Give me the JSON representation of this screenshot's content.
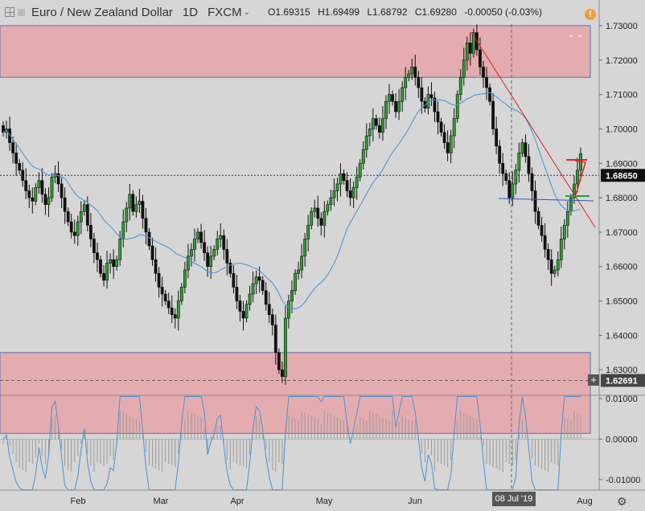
{
  "header": {
    "symbol_title": "Euro / New Zealand Dollar",
    "interval": "1D",
    "exchange": "FXCM",
    "open": "O1.69315",
    "high": "H1.69499",
    "low": "L1.68792",
    "close": "C1.69280",
    "change": "-0.00050 (-0.03%)"
  },
  "icons": {
    "alert": "!",
    "chevrons": "⌄ ⌄",
    "crosshair": "+",
    "settings": "⚙"
  },
  "price_labels": {
    "current": "1.68650",
    "crosshair": "1.62691"
  },
  "time_label": "08 Jul '19",
  "colors": {
    "up": "#2ca02c",
    "down": "#111111",
    "ma": "#4a90d9",
    "zone": "#e8a5a8",
    "trend": "#e02020",
    "panel_bg": "#d6d6d6"
  },
  "chart_data": [
    {
      "type": "candlestick",
      "y_ticks": [
        "1.73000",
        "1.72000",
        "1.71000",
        "1.70000",
        "1.69000",
        "1.68000",
        "1.67000",
        "1.66000",
        "1.65000",
        "1.64000",
        "1.63000"
      ],
      "y_range": [
        1.612,
        1.733
      ],
      "x_ticks": [
        "Feb",
        "Mar",
        "Apr",
        "May",
        "Jun",
        "Jul",
        "Aug"
      ],
      "zones": [
        {
          "from": 1.715,
          "to": 1.73
        },
        {
          "from": 1.6115,
          "to": 1.635
        }
      ],
      "crosshair_price": 1.6269,
      "current_price": 1.6865,
      "closes": [
        1.699,
        1.7,
        1.696,
        1.693,
        1.69,
        1.688,
        1.685,
        1.682,
        1.68,
        1.679,
        1.683,
        1.685,
        1.681,
        1.678,
        1.68,
        1.686,
        1.687,
        1.684,
        1.68,
        1.676,
        1.673,
        1.67,
        1.669,
        1.673,
        1.676,
        1.678,
        1.672,
        1.668,
        1.664,
        1.662,
        1.658,
        1.656,
        1.661,
        1.662,
        1.66,
        1.662,
        1.668,
        1.673,
        1.677,
        1.681,
        1.676,
        1.678,
        1.679,
        1.674,
        1.67,
        1.666,
        1.662,
        1.658,
        1.654,
        1.652,
        1.65,
        1.648,
        1.646,
        1.645,
        1.65,
        1.654,
        1.659,
        1.663,
        1.665,
        1.668,
        1.67,
        1.667,
        1.664,
        1.66,
        1.663,
        1.665,
        1.668,
        1.669,
        1.665,
        1.661,
        1.658,
        1.654,
        1.65,
        1.647,
        1.645,
        1.649,
        1.652,
        1.655,
        1.657,
        1.656,
        1.653,
        1.649,
        1.646,
        1.643,
        1.635,
        1.63,
        1.628,
        1.645,
        1.65,
        1.653,
        1.658,
        1.659,
        1.663,
        1.668,
        1.672,
        1.676,
        1.677,
        1.674,
        1.672,
        1.676,
        1.678,
        1.68,
        1.682,
        1.684,
        1.687,
        1.685,
        1.682,
        1.68,
        1.683,
        1.686,
        1.69,
        1.694,
        1.698,
        1.7,
        1.703,
        1.701,
        1.699,
        1.703,
        1.708,
        1.71,
        1.708,
        1.705,
        1.708,
        1.712,
        1.715,
        1.716,
        1.718,
        1.715,
        1.712,
        1.708,
        1.706,
        1.71,
        1.709,
        1.705,
        1.702,
        1.699,
        1.696,
        1.693,
        1.698,
        1.703,
        1.71,
        1.715,
        1.72,
        1.725,
        1.722,
        1.728,
        1.723,
        1.718,
        1.715,
        1.712,
        1.708,
        1.7,
        1.695,
        1.69,
        1.687,
        1.685,
        1.68,
        1.684,
        1.688,
        1.693,
        1.696,
        1.692,
        1.687,
        1.682,
        1.676,
        1.672,
        1.669,
        1.665,
        1.662,
        1.658,
        1.659,
        1.662,
        1.668,
        1.672,
        1.676,
        1.68,
        1.684,
        1.688,
        1.6928
      ]
    },
    {
      "type": "oscillator",
      "y_ticks": [
        "0.01000",
        "0.00000",
        "-0.01000"
      ],
      "y_range": [
        -0.0135,
        0.0115
      ]
    }
  ]
}
